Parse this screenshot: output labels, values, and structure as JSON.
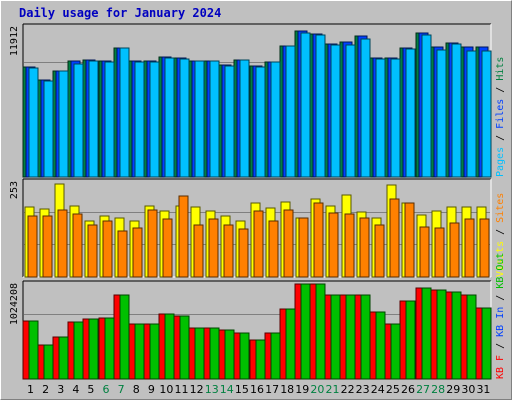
{
  "title": "Daily usage for January 2024",
  "colors": {
    "background": "#c0c0c0",
    "panel": "#c0c0c0",
    "title": "#0000c0",
    "hits": "#008040",
    "files": "#0040ff",
    "pages": "#00c0ff",
    "visits": "#ffff00",
    "sites": "#ff8000",
    "kb_in": "#0040ff",
    "kb_out": "#00c000",
    "kb_f": "#ff0000",
    "weekend_label": "#008040",
    "weekday_label": "#000000",
    "grid": "#808080"
  },
  "chart_data": [
    {
      "type": "bar",
      "panel": "hits-files-pages",
      "ylabel": "11912",
      "ylim": [
        0,
        11912
      ],
      "legend": [
        {
          "text": "Pages",
          "color": "#00c0ff"
        },
        {
          "text": "Files",
          "color": "#0040ff"
        },
        {
          "text": "Hits",
          "color": "#008040"
        }
      ],
      "categories": [
        "1",
        "2",
        "3",
        "4",
        "5",
        "6",
        "7",
        "8",
        "9",
        "10",
        "11",
        "12",
        "13",
        "14",
        "15",
        "16",
        "17",
        "18",
        "19",
        "20",
        "21",
        "22",
        "23",
        "24",
        "25",
        "26",
        "27",
        "28",
        "29",
        "30",
        "31"
      ],
      "series": [
        {
          "name": "Hits",
          "color": "#008040",
          "values": [
            8770,
            7730,
            8490,
            9250,
            9330,
            9250,
            10300,
            9290,
            9290,
            9590,
            9510,
            9290,
            9290,
            8960,
            9370,
            8890,
            9210,
            10440,
            11640,
            11430,
            10630,
            10790,
            11260,
            9510,
            9510,
            10290,
            11480,
            10430,
            10700,
            10370,
            10380
          ]
        },
        {
          "name": "Files",
          "color": "#0040ff",
          "values": [
            8770,
            7730,
            8490,
            9250,
            9330,
            9250,
            10300,
            9290,
            9290,
            9590,
            9510,
            9290,
            9290,
            8960,
            9370,
            8890,
            9210,
            10440,
            11640,
            11430,
            10630,
            10790,
            11260,
            9510,
            9510,
            10290,
            11480,
            10430,
            10700,
            10370,
            10380
          ]
        },
        {
          "name": "Pages",
          "color": "#00c0ff",
          "values": [
            8740,
            7650,
            8440,
            9020,
            9300,
            9220,
            10290,
            9210,
            9210,
            9490,
            9440,
            9260,
            9250,
            8910,
            9350,
            8820,
            9160,
            10460,
            11500,
            11390,
            10580,
            10550,
            11010,
            9430,
            9450,
            10250,
            11340,
            10180,
            10600,
            10110,
            10080
          ]
        }
      ]
    },
    {
      "type": "bar",
      "panel": "visits-sites",
      "ylabel": "253",
      "ylim": [
        0,
        253
      ],
      "legend": [
        {
          "text": "Visits",
          "color": "#ffff00"
        },
        {
          "text": "Sites",
          "color": "#ff8000"
        }
      ],
      "categories": [
        "1",
        "2",
        "3",
        "4",
        "5",
        "6",
        "7",
        "8",
        "9",
        "10",
        "11",
        "12",
        "13",
        "14",
        "15",
        "16",
        "17",
        "18",
        "19",
        "20",
        "21",
        "22",
        "23",
        "24",
        "25",
        "26",
        "27",
        "28",
        "29",
        "30",
        "31"
      ],
      "series": [
        {
          "name": "Visits",
          "color": "#ffff00",
          "values": [
            188,
            182,
            249,
            190,
            150,
            163,
            160,
            150,
            190,
            178,
            191,
            188,
            178,
            165,
            150,
            200,
            185,
            202,
            159,
            209,
            192,
            220,
            175,
            160,
            248,
            200,
            167,
            177,
            188,
            189,
            188
          ]
        },
        {
          "name": "Sites",
          "color": "#ff8000",
          "values": [
            163,
            165,
            179,
            170,
            139,
            150,
            125,
            131,
            180,
            157,
            218,
            140,
            156,
            140,
            128,
            178,
            150,
            180,
            160,
            200,
            171,
            169,
            160,
            141,
            209,
            200,
            134,
            133,
            144,
            155,
            155
          ]
        }
      ]
    },
    {
      "type": "bar",
      "panel": "kbf-kbin-kbout",
      "ylabel": "1024208",
      "ylim": [
        0,
        1024208
      ],
      "legend": [
        {
          "text": "KB F",
          "color": "#ff0000"
        },
        {
          "text": "KB In",
          "color": "#0040ff"
        },
        {
          "text": "KB Out",
          "color": "#00c000"
        }
      ],
      "categories": [
        "1",
        "2",
        "3",
        "4",
        "5",
        "6",
        "7",
        "8",
        "9",
        "10",
        "11",
        "12",
        "13",
        "14",
        "15",
        "16",
        "17",
        "18",
        "19",
        "20",
        "21",
        "22",
        "23",
        "24",
        "25",
        "26",
        "27",
        "28",
        "29",
        "30",
        "31"
      ],
      "series": [
        {
          "name": "KB F",
          "color": "#ff0000",
          "values": [
            630000,
            370000,
            460000,
            620000,
            650000,
            660000,
            920000,
            600000,
            600000,
            710000,
            690000,
            560000,
            560000,
            535000,
            505000,
            420000,
            500000,
            760000,
            1035000,
            1040000,
            920000,
            920000,
            920000,
            730000,
            600000,
            850000,
            996000,
            966000,
            945000,
            920000,
            770000
          ]
        },
        {
          "name": "KB In",
          "color": "#0040ff",
          "values": [
            0,
            0,
            0,
            0,
            0,
            0,
            0,
            0,
            0,
            0,
            0,
            0,
            0,
            0,
            0,
            0,
            0,
            0,
            0,
            0,
            0,
            0,
            0,
            0,
            0,
            0,
            0,
            0,
            0,
            0,
            0
          ]
        },
        {
          "name": "KB Out",
          "color": "#00c000",
          "values": [
            630000,
            370000,
            460000,
            620000,
            650000,
            660000,
            920000,
            600000,
            600000,
            710000,
            690000,
            560000,
            560000,
            535000,
            505000,
            420000,
            500000,
            760000,
            1035000,
            1040000,
            920000,
            920000,
            920000,
            730000,
            600000,
            850000,
            996000,
            966000,
            945000,
            920000,
            770000
          ]
        }
      ]
    }
  ],
  "x_axis": {
    "labels": [
      "1",
      "2",
      "3",
      "4",
      "5",
      "6",
      "7",
      "8",
      "9",
      "10",
      "11",
      "12",
      "13",
      "14",
      "15",
      "16",
      "17",
      "18",
      "19",
      "20",
      "21",
      "22",
      "23",
      "24",
      "25",
      "26",
      "27",
      "28",
      "29",
      "30",
      "31"
    ],
    "weekend": [
      false,
      false,
      false,
      false,
      false,
      true,
      true,
      false,
      false,
      false,
      false,
      false,
      true,
      true,
      false,
      false,
      false,
      false,
      false,
      true,
      true,
      false,
      false,
      false,
      false,
      false,
      true,
      true,
      false,
      false,
      false
    ]
  }
}
